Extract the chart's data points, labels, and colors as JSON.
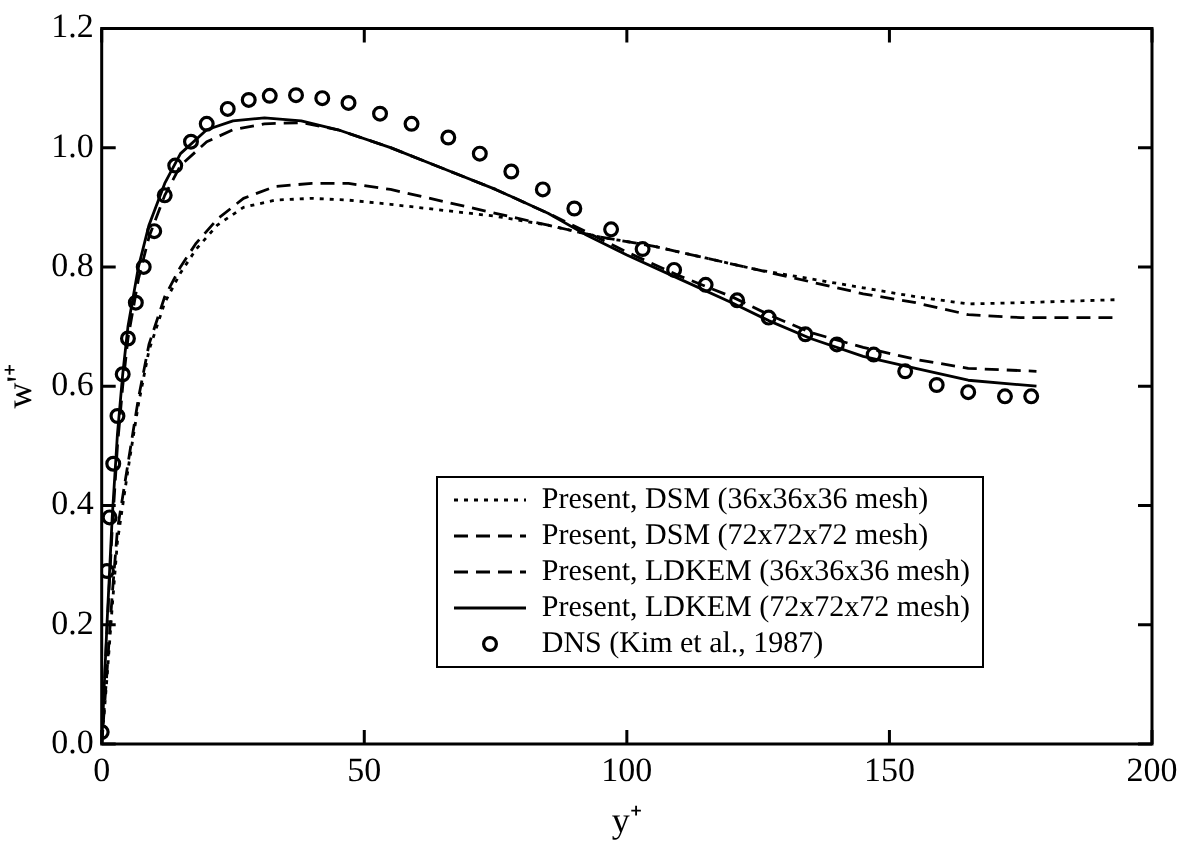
{
  "chart_data": {
    "type": "line",
    "xlabel": "y⁺",
    "ylabel": "w'⁺",
    "xlim": [
      0,
      200
    ],
    "xticks": [
      0,
      50,
      100,
      150,
      200
    ],
    "ylim": [
      0,
      1.2
    ],
    "yticks": [
      {
        "value": 0,
        "label": "0.0"
      },
      {
        "value": 0.2,
        "label": "0.2"
      },
      {
        "value": 0.4,
        "label": "0.4"
      },
      {
        "value": 0.6,
        "label": "0.6"
      },
      {
        "value": 0.8,
        "label": "0.8"
      },
      {
        "value": 1,
        "label": "1.0"
      },
      {
        "value": 1.2,
        "label": "1.2"
      }
    ],
    "grid": false,
    "legend": "bottom right",
    "series": [
      {
        "name": "Present, DSM (36x36x36 mesh)",
        "color": "#000000",
        "line_style": "dotted",
        "marker": "none",
        "x": [
          0,
          1,
          2,
          3,
          5,
          7,
          9,
          12,
          15,
          18,
          22,
          27,
          33,
          40,
          47,
          55,
          65,
          75,
          85,
          95,
          105,
          115,
          125,
          135,
          145,
          155,
          165,
          175,
          193
        ],
        "values": [
          0,
          0.11,
          0.23,
          0.34,
          0.46,
          0.57,
          0.66,
          0.74,
          0.79,
          0.83,
          0.87,
          0.9,
          0.912,
          0.915,
          0.912,
          0.905,
          0.895,
          0.885,
          0.87,
          0.85,
          0.835,
          0.815,
          0.795,
          0.78,
          0.765,
          0.75,
          0.738,
          0.74,
          0.745
        ]
      },
      {
        "name": "Present, DSM (72x72x72 mesh)",
        "color": "#000000",
        "line_style": "dashed",
        "marker": "none",
        "x": [
          0,
          1,
          2,
          3,
          5,
          7,
          9,
          12,
          15,
          18,
          22,
          27,
          33,
          40,
          47,
          55,
          65,
          75,
          85,
          95,
          105,
          115,
          125,
          135,
          145,
          155,
          165,
          175,
          193
        ],
        "values": [
          0,
          0.12,
          0.25,
          0.36,
          0.47,
          0.58,
          0.67,
          0.75,
          0.8,
          0.84,
          0.88,
          0.915,
          0.935,
          0.94,
          0.94,
          0.93,
          0.91,
          0.89,
          0.87,
          0.85,
          0.835,
          0.815,
          0.795,
          0.775,
          0.755,
          0.74,
          0.72,
          0.715,
          0.715
        ]
      },
      {
        "name": "Present, LDKEM (36x36x36 mesh)",
        "color": "#000000",
        "line_style": "dashed",
        "marker": "none",
        "x": [
          0,
          1,
          2,
          3,
          4,
          5,
          7,
          9,
          12,
          15,
          20,
          25,
          31,
          38,
          45,
          55,
          65,
          75,
          85,
          92,
          100,
          110,
          120,
          127,
          135,
          145,
          155,
          165,
          178
        ],
        "values": [
          0,
          0.19,
          0.36,
          0.5,
          0.6,
          0.68,
          0.78,
          0.85,
          0.92,
          0.97,
          1.01,
          1.03,
          1.04,
          1.042,
          1.03,
          1,
          0.965,
          0.93,
          0.89,
          0.86,
          0.825,
          0.785,
          0.75,
          0.72,
          0.69,
          0.665,
          0.645,
          0.63,
          0.625
        ]
      },
      {
        "name": "Present, LDKEM (72x72x72 mesh)",
        "color": "#000000",
        "line_style": "solid",
        "marker": "none",
        "x": [
          0,
          1,
          2,
          3,
          4,
          5,
          7,
          9,
          12,
          15,
          20,
          25,
          31,
          38,
          45,
          55,
          65,
          75,
          85,
          92,
          100,
          110,
          120,
          127,
          135,
          145,
          155,
          165,
          178
        ],
        "values": [
          0,
          0.2,
          0.38,
          0.52,
          0.62,
          0.7,
          0.8,
          0.87,
          0.94,
          0.99,
          1.03,
          1.045,
          1.05,
          1.045,
          1.03,
          1,
          0.965,
          0.93,
          0.89,
          0.855,
          0.82,
          0.78,
          0.74,
          0.71,
          0.68,
          0.65,
          0.63,
          0.61,
          0.6
        ]
      },
      {
        "name": "DNS (Kim et al., 1987)",
        "type": "scatter",
        "color": "#000000",
        "marker": "circle",
        "x": [
          0,
          1,
          1.5,
          2.2,
          3,
          4,
          5,
          6.5,
          8,
          10,
          12,
          14,
          17,
          20,
          24,
          28,
          32,
          37,
          42,
          47,
          53,
          59,
          66,
          72,
          78,
          84,
          90,
          97,
          103,
          109,
          115,
          121,
          127,
          134,
          140,
          147,
          153,
          159,
          165,
          172,
          177
        ],
        "values": [
          0.02,
          0.29,
          0.38,
          0.47,
          0.55,
          0.62,
          0.68,
          0.74,
          0.8,
          0.86,
          0.92,
          0.97,
          1.01,
          1.04,
          1.065,
          1.08,
          1.087,
          1.088,
          1.083,
          1.075,
          1.057,
          1.04,
          1.017,
          0.99,
          0.96,
          0.93,
          0.898,
          0.863,
          0.83,
          0.795,
          0.77,
          0.744,
          0.715,
          0.687,
          0.67,
          0.653,
          0.625,
          0.602,
          0.59,
          0.583,
          0.583
        ]
      }
    ]
  }
}
